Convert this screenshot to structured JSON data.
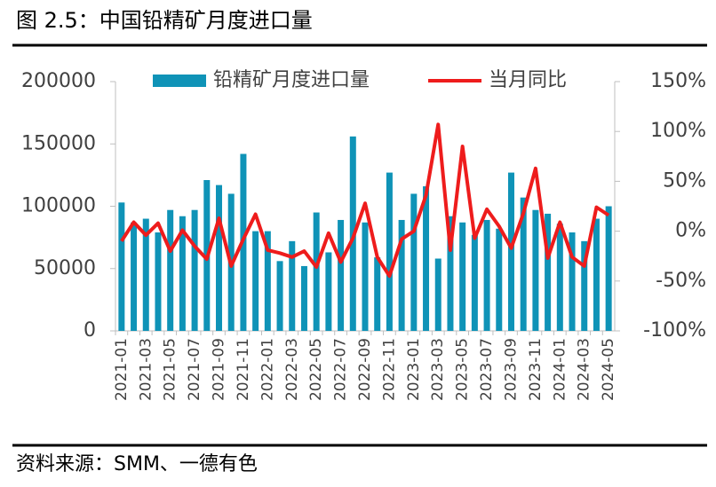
{
  "chart_data": {
    "type": "bar_line",
    "title": "图 2.5：中国铅精矿月度进口量",
    "source": "资料来源：SMM、一德有色",
    "categories": [
      "2021-01",
      null,
      "2021-03",
      null,
      "2021-05",
      null,
      "2021-07",
      null,
      "2021-09",
      null,
      "2021-11",
      null,
      "2022-01",
      null,
      "2022-03",
      null,
      "2022-05",
      null,
      "2022-07",
      null,
      "2022-09",
      null,
      "2022-11",
      null,
      "2023-01",
      null,
      "2023-03",
      null,
      "2023-05",
      null,
      "2023-07",
      null,
      "2023-09",
      null,
      "2023-11",
      null,
      "2024-01",
      null,
      "2024-03",
      null,
      "2024-05"
    ],
    "series": [
      {
        "name": "铅精矿月度进口量",
        "color": "#0f93b7",
        "type": "bar",
        "axis": "y",
        "values": [
          103000,
          87000,
          90000,
          79000,
          97000,
          92000,
          97000,
          121000,
          117000,
          110000,
          142000,
          80000,
          80000,
          56000,
          72000,
          52000,
          95000,
          63000,
          89000,
          156000,
          87000,
          59000,
          127000,
          89000,
          110000,
          116000,
          58000,
          92000,
          87000,
          77000,
          89000,
          82000,
          127000,
          107000,
          97000,
          94000,
          86000,
          79000,
          72000,
          90000,
          100000
        ]
      },
      {
        "name": "当月同比",
        "color": "#ee1c1c",
        "type": "line",
        "axis": "y2",
        "values": [
          -10,
          9,
          -4,
          8,
          -20,
          1,
          -15,
          -28,
          13,
          -35,
          -8,
          17,
          -19,
          -22,
          -26,
          -20,
          -36,
          -2,
          -31,
          -7,
          28,
          -26,
          -45,
          -8,
          0,
          36,
          107,
          -19,
          85,
          -7,
          22,
          5,
          -17,
          18,
          63,
          -27,
          9,
          -26,
          -35,
          24,
          16
        ]
      }
    ],
    "ylim": [
      0,
      200000
    ],
    "yticks": [
      0,
      50000,
      100000,
      150000,
      200000
    ],
    "y2lim": [
      -100,
      150
    ],
    "y2ticks": [
      {
        "value": -100,
        "label": "-100%"
      },
      {
        "value": -50,
        "label": "-50%"
      },
      {
        "value": 0,
        "label": "0%"
      },
      {
        "value": 50,
        "label": "50%"
      },
      {
        "value": 100,
        "label": "100%"
      },
      {
        "value": 150,
        "label": "150%"
      }
    ],
    "legend": "top"
  }
}
